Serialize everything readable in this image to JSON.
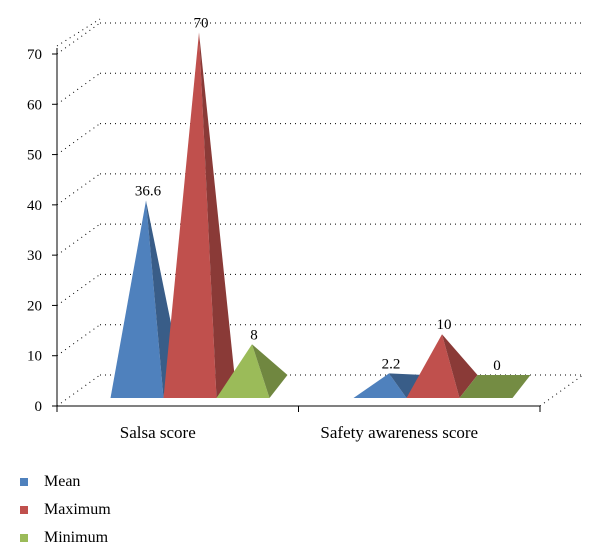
{
  "chart_data": {
    "type": "bar",
    "shape": "pyramid",
    "categories": [
      "Salsa score",
      "Safety awareness score"
    ],
    "series": [
      {
        "name": "Mean",
        "values": [
          36.6,
          2.2
        ],
        "labels": [
          "36.6",
          "2.2"
        ],
        "color": "#4f81bd"
      },
      {
        "name": "Maximum",
        "values": [
          70,
          10
        ],
        "labels": [
          "70",
          "10"
        ],
        "color": "#c0504d"
      },
      {
        "name": "Minimum",
        "values": [
          8,
          0
        ],
        "labels": [
          "8",
          "0"
        ],
        "color": "#9bbb59"
      }
    ],
    "ylim": [
      0,
      70
    ],
    "yticks": [
      "0",
      "10",
      "20",
      "30",
      "40",
      "50",
      "60",
      "70"
    ],
    "grid": "dotted",
    "legend_position": "bottom-left",
    "title": "",
    "xlabel": "",
    "ylabel": ""
  }
}
